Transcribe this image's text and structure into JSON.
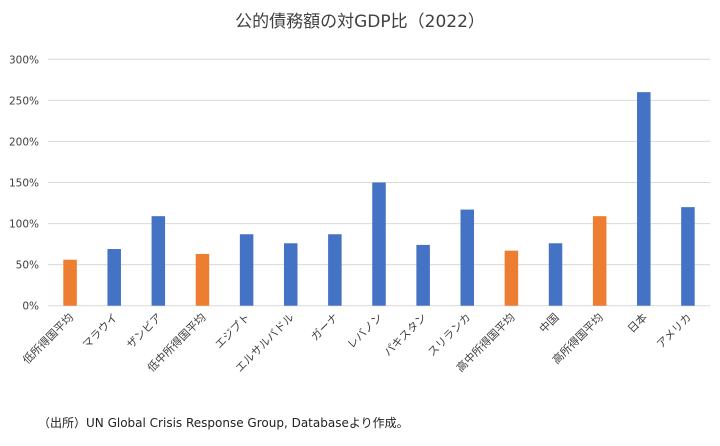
{
  "chart_data": {
    "type": "bar",
    "title": "公的債務額の対GDP比（2022）",
    "categories": [
      "低所得国平均",
      "マラウイ",
      "ザンビア",
      "低中所得国平均",
      "エジプト",
      "エルサルバドル",
      "ガーナ",
      "レバノン",
      "パキスタン",
      "スリランカ",
      "高中所得国平均",
      "中国",
      "高所得国平均",
      "日本",
      "アメリカ"
    ],
    "values": [
      56,
      69,
      109,
      63,
      87,
      76,
      87,
      150,
      74,
      117,
      67,
      76,
      109,
      260,
      120
    ],
    "bar_types": [
      "average",
      "country",
      "country",
      "average",
      "country",
      "country",
      "country",
      "country",
      "country",
      "country",
      "average",
      "country",
      "average",
      "country",
      "country"
    ],
    "colors": {
      "country": "#4472c4",
      "average": "#ed7d31"
    },
    "ylim": [
      0,
      300
    ],
    "yticks": [
      0,
      50,
      100,
      150,
      200,
      250,
      300
    ],
    "ytick_labels": [
      "0%",
      "50%",
      "100%",
      "150%",
      "200%",
      "250%",
      "300%"
    ],
    "xlabel": "",
    "ylabel": "",
    "grid": true,
    "legend": "none",
    "source_note": "（出所）UN Global Crisis Response Group, Databaseより作成。"
  }
}
